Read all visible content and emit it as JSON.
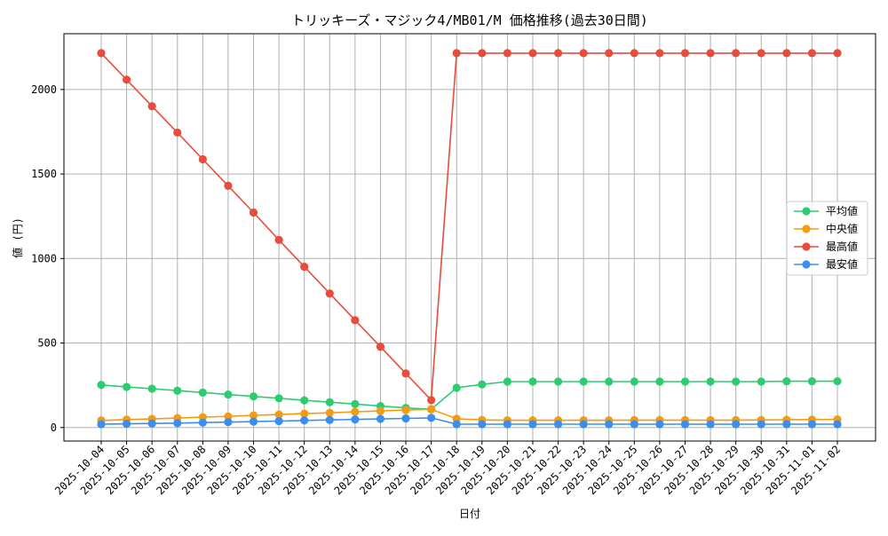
{
  "chart_data": {
    "type": "line",
    "title": "トリッキーズ・マジック4/MB01/M 価格推移(過去30日間)",
    "xlabel": "日付",
    "ylabel": "値 (円)",
    "x": [
      "2025-10-04",
      "2025-10-05",
      "2025-10-06",
      "2025-10-07",
      "2025-10-08",
      "2025-10-09",
      "2025-10-10",
      "2025-10-11",
      "2025-10-12",
      "2025-10-13",
      "2025-10-14",
      "2025-10-15",
      "2025-10-16",
      "2025-10-17",
      "2025-10-18",
      "2025-10-19",
      "2025-10-20",
      "2025-10-21",
      "2025-10-22",
      "2025-10-23",
      "2025-10-24",
      "2025-10-25",
      "2025-10-26",
      "2025-10-27",
      "2025-10-28",
      "2025-10-29",
      "2025-10-30",
      "2025-10-31",
      "2025-11-01",
      "2025-11-02"
    ],
    "ylim": [
      -80,
      2330
    ],
    "yticks": [
      0,
      500,
      1000,
      1500,
      2000
    ],
    "grid": true,
    "legend_position": "right",
    "series": [
      {
        "name": "平均値",
        "color": "#2ecc71",
        "values": [
          252,
          240,
          230,
          218,
          207,
          195,
          184,
          173,
          161,
          150,
          139,
          127,
          116,
          108,
          235,
          255,
          272,
          272,
          272,
          272,
          272,
          272,
          272,
          272,
          272,
          272,
          272,
          274,
          274,
          274
        ]
      },
      {
        "name": "中央値",
        "color": "#f39c12",
        "values": [
          42,
          47,
          51,
          56,
          61,
          66,
          72,
          77,
          82,
          87,
          93,
          98,
          103,
          108,
          52,
          45,
          43,
          43,
          43,
          43,
          43,
          44,
          44,
          44,
          44,
          44,
          45,
          46,
          47,
          48
        ]
      },
      {
        "name": "最高値",
        "color": "#e74c3c",
        "values": [
          2215,
          2058,
          1901,
          1745,
          1587,
          1430,
          1272,
          1110,
          951,
          793,
          635,
          478,
          320,
          162,
          2215,
          2215,
          2215,
          2215,
          2215,
          2215,
          2215,
          2215,
          2215,
          2215,
          2215,
          2215,
          2215,
          2215,
          2215,
          2215
        ]
      },
      {
        "name": "最安値",
        "color": "#3b8ef0",
        "values": [
          20,
          22,
          24,
          26,
          29,
          32,
          35,
          38,
          42,
          45,
          48,
          51,
          54,
          57,
          20,
          20,
          20,
          20,
          20,
          20,
          20,
          20,
          20,
          20,
          20,
          20,
          20,
          20,
          20,
          20
        ]
      }
    ]
  }
}
